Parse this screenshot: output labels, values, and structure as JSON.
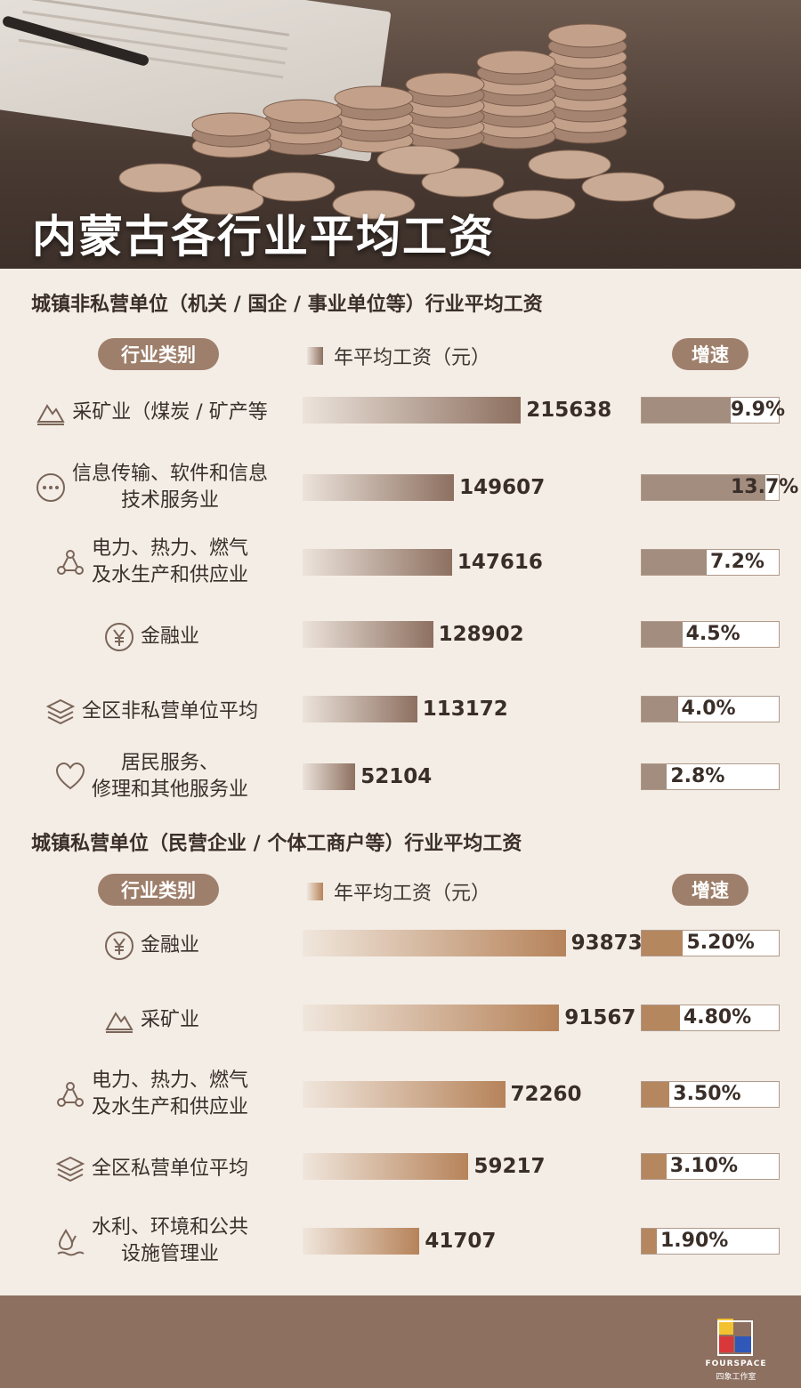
{
  "title": "内蒙古各行业平均工资",
  "colors": {
    "page_bg": "#f4ede6",
    "pill": "#9e7f6b",
    "bar_state": "#9e8575",
    "bar_private": "#b98a63",
    "footer": "#8d7060"
  },
  "chart_data": [
    {
      "type": "bar",
      "title": "城镇非私营单位（机关 / 国企 / 事业单位等）行业平均工资",
      "category_header": "行业类别",
      "series_name": "年平均工资（元）",
      "growth_header": "增速",
      "categories": [
        {
          "name": "采矿业（煤炭 / 矿产等",
          "lines": [
            "采矿业（煤炭 / 矿产等"
          ],
          "icon": "mountain-icon"
        },
        {
          "name": "信息传输、软件和信息技术服务业",
          "lines": [
            "信息传输、软件和信息",
            "技术服务业"
          ],
          "icon": "dots-circle-icon"
        },
        {
          "name": "电力、热力、燃气及水生产和供应业",
          "lines": [
            "电力、热力、燃气",
            "及水生产和供应业"
          ],
          "icon": "network-icon"
        },
        {
          "name": "金融业",
          "lines": [
            "金融业"
          ],
          "icon": "yuan-icon"
        },
        {
          "name": "全区非私营单位平均",
          "lines": [
            "全区非私营单位平均"
          ],
          "icon": "layers-icon"
        },
        {
          "name": "居民服务、修理和其他服务业",
          "lines": [
            "居民服务、",
            "修理和其他服务业"
          ],
          "icon": "heart-icon"
        }
      ],
      "values": [
        215638,
        149607,
        147616,
        128902,
        113172,
        52104
      ],
      "growth": [
        9.9,
        13.7,
        7.2,
        4.5,
        4.0,
        2.8
      ],
      "growth_labels": [
        "9.9%",
        "13.7%",
        "7.2%",
        "4.5%",
        "4.0%",
        "2.8%"
      ],
      "xlim": [
        0,
        240000
      ],
      "growth_lim": [
        0,
        15
      ]
    },
    {
      "type": "bar",
      "title": "城镇私营单位（民营企业 / 个体工商户等）行业平均工资",
      "category_header": "行业类别",
      "series_name": "年平均工资（元）",
      "growth_header": "增速",
      "categories": [
        {
          "name": "金融业",
          "lines": [
            "金融业"
          ],
          "icon": "yuan-icon"
        },
        {
          "name": "采矿业",
          "lines": [
            "采矿业"
          ],
          "icon": "mountain-icon"
        },
        {
          "name": "电力、热力、燃气及水生产和供应业",
          "lines": [
            "电力、热力、燃气",
            "及水生产和供应业"
          ],
          "icon": "network-icon"
        },
        {
          "name": "全区私营单位平均",
          "lines": [
            "全区私营单位平均"
          ],
          "icon": "layers-icon"
        },
        {
          "name": "水利、环境和公共设施管理业",
          "lines": [
            "水利、环境和公共",
            "设施管理业"
          ],
          "icon": "water-drop-icon"
        }
      ],
      "values": [
        93873,
        91567,
        72260,
        59217,
        41707
      ],
      "growth": [
        5.2,
        4.8,
        3.5,
        3.1,
        1.9
      ],
      "growth_labels": [
        "5.20%",
        "4.80%",
        "3.50%",
        "3.10%",
        "1.90%"
      ],
      "xlim": [
        0,
        94000
      ],
      "growth_lim": [
        0,
        17
      ]
    }
  ],
  "footer": {
    "brand": "FOURSPACE",
    "brand_sub": "四象工作室"
  }
}
